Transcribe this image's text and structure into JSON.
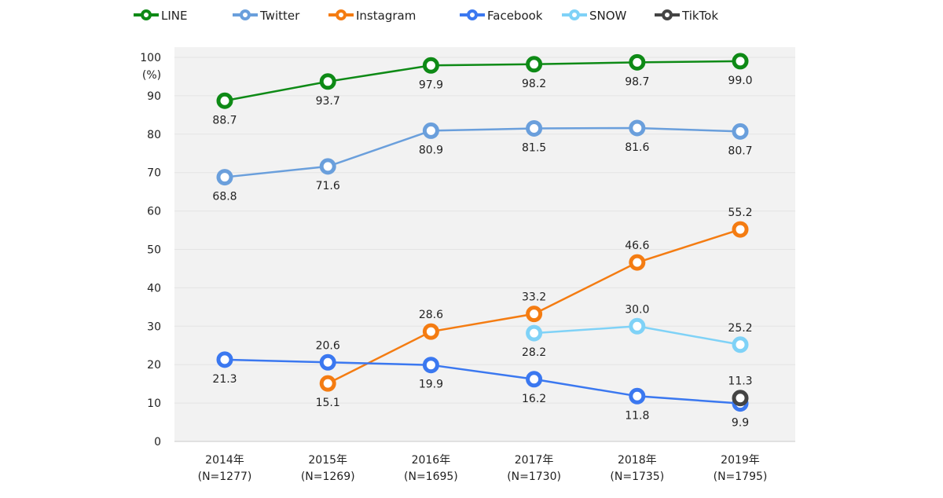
{
  "chart_data": {
    "type": "line",
    "title": "",
    "xlabel": "",
    "ylabel": "(%)",
    "ylim": [
      0,
      100
    ],
    "yticks": [
      0,
      10,
      20,
      30,
      40,
      50,
      60,
      70,
      80,
      90,
      100
    ],
    "grid": true,
    "legend_placement": "top",
    "categories": [
      {
        "year": "2014年",
        "n": "(N=1277)"
      },
      {
        "year": "2015年",
        "n": "(N=1269)"
      },
      {
        "year": "2016年",
        "n": "(N=1695)"
      },
      {
        "year": "2017年",
        "n": "(N=1730)"
      },
      {
        "year": "2018年",
        "n": "(N=1735)"
      },
      {
        "year": "2019年",
        "n": "(N=1795)"
      }
    ],
    "series": [
      {
        "name": "LINE",
        "color": "#0e8a16",
        "values": [
          88.7,
          93.7,
          97.9,
          98.2,
          98.7,
          99.0
        ],
        "labels": [
          "88.7",
          "93.7",
          "97.9",
          "98.2",
          "98.7",
          "99.0"
        ],
        "label_pos": [
          "below",
          "below",
          "below",
          "below",
          "below",
          "below"
        ]
      },
      {
        "name": "Twitter",
        "color": "#6a9fdc",
        "values": [
          68.8,
          71.6,
          80.9,
          81.5,
          81.6,
          80.7
        ],
        "labels": [
          "68.8",
          "71.6",
          "80.9",
          "81.5",
          "81.6",
          "80.7"
        ],
        "label_pos": [
          "below",
          "below",
          "below",
          "below",
          "below",
          "below"
        ]
      },
      {
        "name": "Instagram",
        "color": "#f47c12",
        "values": [
          null,
          15.1,
          28.6,
          33.2,
          46.6,
          55.2
        ],
        "labels": [
          null,
          "15.1",
          "28.6",
          "33.2",
          "46.6",
          "55.2"
        ],
        "label_pos": [
          null,
          "below",
          "above",
          "above",
          "above",
          "above"
        ]
      },
      {
        "name": "Facebook",
        "color": "#3b78f0",
        "values": [
          21.3,
          20.6,
          19.9,
          16.2,
          11.8,
          9.9
        ],
        "labels": [
          "21.3",
          "20.6",
          "19.9",
          "16.2",
          "11.8",
          "9.9"
        ],
        "label_pos": [
          "below",
          "above",
          "below",
          "below",
          "below",
          "below"
        ]
      },
      {
        "name": "SNOW",
        "color": "#7fd2f7",
        "values": [
          null,
          null,
          null,
          28.2,
          30.0,
          25.2
        ],
        "labels": [
          null,
          null,
          null,
          "28.2",
          "30.0",
          "25.2"
        ],
        "label_pos": [
          null,
          null,
          null,
          "below",
          "above",
          "above"
        ]
      },
      {
        "name": "TikTok",
        "color": "#444444",
        "values": [
          null,
          null,
          null,
          null,
          null,
          11.3
        ],
        "labels": [
          null,
          null,
          null,
          null,
          null,
          "11.3"
        ],
        "label_pos": [
          null,
          null,
          null,
          null,
          null,
          "above"
        ]
      }
    ]
  }
}
